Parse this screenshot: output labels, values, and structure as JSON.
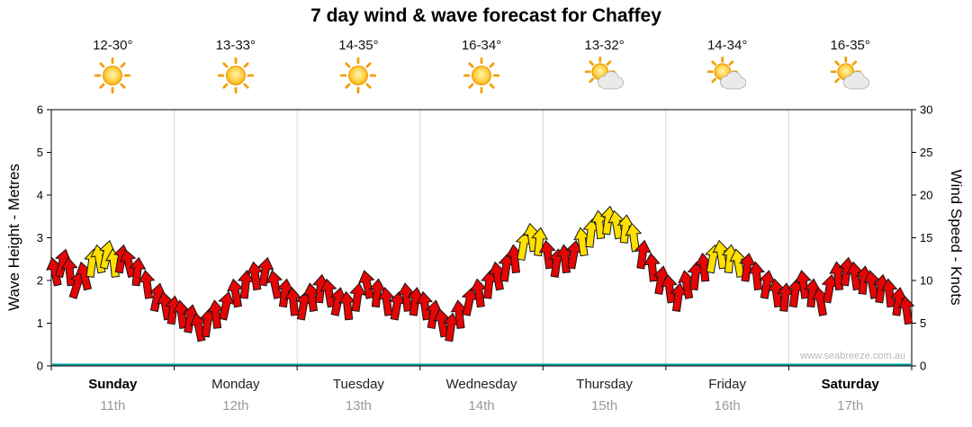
{
  "watermark": "www.seabreeze.com.au",
  "days": [
    {
      "name": "Sunday",
      "date": "11th",
      "temps": "12-30°",
      "icon": "sunny",
      "weekend": true
    },
    {
      "name": "Monday",
      "date": "12th",
      "temps": "13-33°",
      "icon": "sunny",
      "weekend": false
    },
    {
      "name": "Tuesday",
      "date": "13th",
      "temps": "14-35°",
      "icon": "sunny",
      "weekend": false
    },
    {
      "name": "Wednesday",
      "date": "14th",
      "temps": "16-34°",
      "icon": "sunny",
      "weekend": false
    },
    {
      "name": "Thursday",
      "date": "15th",
      "temps": "13-32°",
      "icon": "partly-cloudy",
      "weekend": false
    },
    {
      "name": "Friday",
      "date": "16th",
      "temps": "14-34°",
      "icon": "partly-cloudy",
      "weekend": false
    },
    {
      "name": "Saturday",
      "date": "17th",
      "temps": "16-35°",
      "icon": "partly-cloudy",
      "weekend": true
    }
  ],
  "chart_data": {
    "type": "scatter",
    "subtype": "wind-arrow-forecast",
    "title": "7 day wind & wave forecast for Chaffey",
    "categories": [
      "Sunday",
      "Monday",
      "Tuesday",
      "Wednesday",
      "Thursday",
      "Friday",
      "Saturday"
    ],
    "x_axis": {
      "unit": "days",
      "range": [
        0,
        7
      ]
    },
    "y_axis_left": {
      "label": "Wave Height - Metres",
      "range": [
        0,
        6
      ],
      "ticks": [
        0,
        1,
        2,
        3,
        4,
        5,
        6
      ]
    },
    "y_axis_right": {
      "label": "Wind Speed - Knots",
      "range": [
        0,
        30
      ],
      "ticks": [
        0,
        5,
        10,
        15,
        20,
        25,
        30
      ]
    },
    "colors": {
      "r": "#e60505",
      "y": "#ffe000"
    },
    "point_format": [
      "t_days",
      "knots",
      "color",
      "rotation_deg"
    ],
    "points": [
      [
        0.03,
        11,
        "r",
        -12
      ],
      [
        0.09,
        12,
        "r",
        14
      ],
      [
        0.15,
        11,
        "r",
        -6
      ],
      [
        0.21,
        9.5,
        "r",
        18
      ],
      [
        0.27,
        10.5,
        "r",
        -14
      ],
      [
        0.33,
        12,
        "y",
        8
      ],
      [
        0.39,
        12.5,
        "y",
        -10
      ],
      [
        0.45,
        13,
        "y",
        12
      ],
      [
        0.51,
        12,
        "y",
        -6
      ],
      [
        0.57,
        12.5,
        "r",
        10
      ],
      [
        0.63,
        12,
        "r",
        -14
      ],
      [
        0.7,
        11,
        "r",
        6
      ],
      [
        0.78,
        9.5,
        "r",
        -8
      ],
      [
        0.86,
        8,
        "r",
        12
      ],
      [
        0.93,
        7,
        "r",
        -10
      ],
      [
        0.99,
        6.5,
        "r",
        8
      ],
      [
        1.06,
        6,
        "r",
        -8
      ],
      [
        1.13,
        5.5,
        "r",
        10
      ],
      [
        1.2,
        4.5,
        "r",
        -12
      ],
      [
        1.27,
        5,
        "r",
        8
      ],
      [
        1.34,
        6,
        "r",
        -6
      ],
      [
        1.42,
        7,
        "r",
        12
      ],
      [
        1.5,
        8.5,
        "r",
        -10
      ],
      [
        1.58,
        9.5,
        "r",
        6
      ],
      [
        1.66,
        10.5,
        "r",
        -8
      ],
      [
        1.74,
        11,
        "r",
        10
      ],
      [
        1.82,
        9.5,
        "r",
        -12
      ],
      [
        1.9,
        8.5,
        "r",
        8
      ],
      [
        1.97,
        7.5,
        "r",
        -6
      ],
      [
        2.05,
        7,
        "r",
        10
      ],
      [
        2.12,
        8,
        "r",
        -8
      ],
      [
        2.19,
        9,
        "r",
        6
      ],
      [
        2.26,
        8.5,
        "r",
        -10
      ],
      [
        2.33,
        7.5,
        "r",
        12
      ],
      [
        2.41,
        7,
        "r",
        -6
      ],
      [
        2.49,
        8,
        "r",
        8
      ],
      [
        2.57,
        9.5,
        "r",
        -12
      ],
      [
        2.65,
        8.5,
        "r",
        6
      ],
      [
        2.73,
        7.5,
        "r",
        -8
      ],
      [
        2.81,
        7,
        "r",
        10
      ],
      [
        2.89,
        8,
        "r",
        -6
      ],
      [
        2.96,
        7.5,
        "r",
        8
      ],
      [
        3.04,
        7,
        "r",
        -8
      ],
      [
        3.11,
        6,
        "r",
        10
      ],
      [
        3.18,
        5,
        "r",
        -10
      ],
      [
        3.25,
        4.5,
        "r",
        8
      ],
      [
        3.32,
        6,
        "r",
        -6
      ],
      [
        3.4,
        7.5,
        "r",
        12
      ],
      [
        3.48,
        8.5,
        "r",
        -8
      ],
      [
        3.56,
        9.5,
        "r",
        6
      ],
      [
        3.63,
        10.5,
        "r",
        -10
      ],
      [
        3.7,
        11.5,
        "r",
        8
      ],
      [
        3.77,
        12.5,
        "r",
        -6
      ],
      [
        3.84,
        14,
        "y",
        10
      ],
      [
        3.91,
        15,
        "y",
        -8
      ],
      [
        3.97,
        14.5,
        "y",
        6
      ],
      [
        4.04,
        13,
        "r",
        -8
      ],
      [
        4.11,
        12,
        "r",
        8
      ],
      [
        4.18,
        12.5,
        "r",
        -6
      ],
      [
        4.25,
        13,
        "r",
        10
      ],
      [
        4.32,
        14.5,
        "y",
        -8
      ],
      [
        4.39,
        15.5,
        "y",
        6
      ],
      [
        4.46,
        16.5,
        "y",
        -6
      ],
      [
        4.53,
        17,
        "y",
        8
      ],
      [
        4.6,
        16.5,
        "y",
        -10
      ],
      [
        4.67,
        16,
        "y",
        6
      ],
      [
        4.74,
        15,
        "y",
        -8
      ],
      [
        4.81,
        13,
        "r",
        8
      ],
      [
        4.89,
        11.5,
        "r",
        -6
      ],
      [
        4.96,
        10,
        "r",
        10
      ],
      [
        5.03,
        9,
        "r",
        -8
      ],
      [
        5.1,
        8,
        "r",
        8
      ],
      [
        5.17,
        9.5,
        "r",
        -10
      ],
      [
        5.24,
        10.5,
        "r",
        6
      ],
      [
        5.31,
        11.5,
        "r",
        -6
      ],
      [
        5.38,
        12.5,
        "y",
        10
      ],
      [
        5.45,
        13,
        "y",
        -8
      ],
      [
        5.52,
        12.5,
        "y",
        6
      ],
      [
        5.59,
        12,
        "y",
        -10
      ],
      [
        5.66,
        11.5,
        "r",
        8
      ],
      [
        5.74,
        10.5,
        "r",
        -6
      ],
      [
        5.82,
        9.5,
        "r",
        10
      ],
      [
        5.9,
        8.5,
        "r",
        -8
      ],
      [
        5.97,
        8,
        "r",
        6
      ],
      [
        6.05,
        8.5,
        "r",
        8
      ],
      [
        6.12,
        9.5,
        "r",
        -8
      ],
      [
        6.19,
        8.5,
        "r",
        6
      ],
      [
        6.26,
        7.5,
        "r",
        -10
      ],
      [
        6.33,
        9,
        "r",
        10
      ],
      [
        6.4,
        10.5,
        "r",
        -6
      ],
      [
        6.47,
        11,
        "r",
        8
      ],
      [
        6.54,
        10.5,
        "r",
        -8
      ],
      [
        6.61,
        10,
        "r",
        6
      ],
      [
        6.68,
        9.5,
        "r",
        -10
      ],
      [
        6.75,
        9,
        "r",
        8
      ],
      [
        6.82,
        8.5,
        "r",
        -6
      ],
      [
        6.89,
        7.5,
        "r",
        8
      ],
      [
        6.96,
        6.5,
        "r",
        -8
      ]
    ]
  }
}
